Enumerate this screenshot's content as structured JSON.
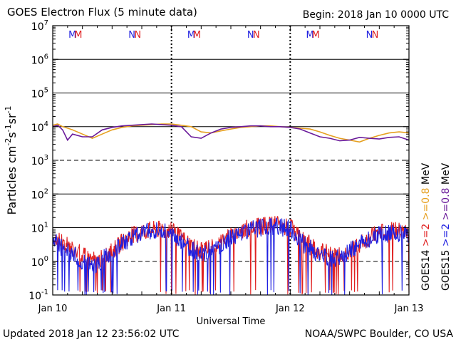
{
  "header": {
    "title": "GOES Electron Flux (5 minute data)",
    "begin": "Begin: 2018 Jan 10 0000 UTC"
  },
  "footer": {
    "updated": "Updated 2018 Jan 12 23:56:02 UTC",
    "credit": "NOAA/SWPC Boulder, CO USA"
  },
  "chart_data": {
    "type": "line",
    "title": "GOES Electron Flux (5 minute data)",
    "xlabel": "Universal Time",
    "ylabel_parts": [
      "Particles cm",
      "-2",
      "s",
      "-1",
      "sr",
      "-1"
    ],
    "y_scale": "log",
    "ylim": [
      0.1,
      10000000
    ],
    "y_ticks": [
      {
        "value": 0.1,
        "base": "10",
        "exp": "-1"
      },
      {
        "value": 1,
        "base": "10",
        "exp": "0"
      },
      {
        "value": 10,
        "base": "10",
        "exp": "1"
      },
      {
        "value": 100,
        "base": "10",
        "exp": "2"
      },
      {
        "value": 1000,
        "base": "10",
        "exp": "3"
      },
      {
        "value": 10000,
        "base": "10",
        "exp": "4"
      },
      {
        "value": 100000,
        "base": "10",
        "exp": "5"
      },
      {
        "value": 1000000,
        "base": "10",
        "exp": "6"
      },
      {
        "value": 10000000,
        "base": "10",
        "exp": "7"
      }
    ],
    "dashed_levels": [
      1000,
      1
    ],
    "xlim": [
      "2018-01-10 00:00",
      "2018-01-13 00:00"
    ],
    "x_ticks": [
      {
        "value": "2018-01-10 00:00",
        "label": "Jan 10"
      },
      {
        "value": "2018-01-11 00:00",
        "label": "Jan 11"
      },
      {
        "value": "2018-01-12 00:00",
        "label": "Jan 12"
      },
      {
        "value": "2018-01-13 00:00",
        "label": "Jan 13"
      }
    ],
    "markers": [
      {
        "label": "M",
        "satellite": "GOES14",
        "color": "#2020e0",
        "time": "2018-01-10 04:00"
      },
      {
        "label": "M",
        "satellite": "GOES15",
        "color": "#e02020",
        "time": "2018-01-10 05:10"
      },
      {
        "label": "N",
        "satellite": "GOES14",
        "color": "#2020e0",
        "time": "2018-01-10 16:00"
      },
      {
        "label": "N",
        "satellite": "GOES15",
        "color": "#e02020",
        "time": "2018-01-10 17:10"
      },
      {
        "label": "M",
        "satellite": "GOES14",
        "color": "#2020e0",
        "time": "2018-01-11 04:00"
      },
      {
        "label": "M",
        "satellite": "GOES15",
        "color": "#e02020",
        "time": "2018-01-11 05:10"
      },
      {
        "label": "N",
        "satellite": "GOES14",
        "color": "#2020e0",
        "time": "2018-01-11 16:00"
      },
      {
        "label": "N",
        "satellite": "GOES15",
        "color": "#e02020",
        "time": "2018-01-11 17:10"
      },
      {
        "label": "M",
        "satellite": "GOES14",
        "color": "#2020e0",
        "time": "2018-01-12 04:00"
      },
      {
        "label": "M",
        "satellite": "GOES15",
        "color": "#e02020",
        "time": "2018-01-12 05:10"
      },
      {
        "label": "N",
        "satellite": "GOES14",
        "color": "#2020e0",
        "time": "2018-01-12 16:00"
      },
      {
        "label": "N",
        "satellite": "GOES15",
        "color": "#e02020",
        "time": "2018-01-12 17:10"
      }
    ],
    "legend": {
      "placement": "right",
      "columns": [
        {
          "satellite": "GOES14",
          "entries": [
            {
              "text": ">=2",
              "color": "#e02020"
            },
            {
              "text": ">=0.8",
              "color": "#e6a020"
            }
          ],
          "unit": "MeV"
        },
        {
          "satellite": "GOES15",
          "entries": [
            {
              "text": ">=2",
              "color": "#2020e0"
            },
            {
              "text": ">=0.8",
              "color": "#6a1a9a"
            }
          ],
          "unit": "MeV"
        }
      ]
    },
    "series": [
      {
        "name": "GOES14 >=0.8 MeV",
        "color": "#e6a020",
        "x": [
          "2018-01-10 00:00",
          "2018-01-10 01:00",
          "2018-01-10 02:00",
          "2018-01-10 03:00",
          "2018-01-10 04:00",
          "2018-01-10 06:00",
          "2018-01-10 08:00",
          "2018-01-10 10:00",
          "2018-01-10 12:00",
          "2018-01-10 14:00",
          "2018-01-10 16:00",
          "2018-01-10 18:00",
          "2018-01-10 20:00",
          "2018-01-10 22:00",
          "2018-01-11 00:00",
          "2018-01-11 02:00",
          "2018-01-11 04:00",
          "2018-01-11 06:00",
          "2018-01-11 08:00",
          "2018-01-11 10:00",
          "2018-01-11 12:00",
          "2018-01-11 14:00",
          "2018-01-11 16:00",
          "2018-01-11 18:00",
          "2018-01-11 20:00",
          "2018-01-11 22:00",
          "2018-01-12 00:00",
          "2018-01-12 02:00",
          "2018-01-12 04:00",
          "2018-01-12 06:00",
          "2018-01-12 08:00",
          "2018-01-12 10:00",
          "2018-01-12 12:00",
          "2018-01-12 14:00",
          "2018-01-12 16:00",
          "2018-01-12 18:00",
          "2018-01-12 20:00",
          "2018-01-12 22:00",
          "2018-01-13 00:00"
        ],
        "values": [
          11000,
          12000,
          10000,
          9000,
          8000,
          6000,
          4500,
          6000,
          8000,
          9500,
          10500,
          11000,
          11500,
          12000,
          12000,
          11000,
          10000,
          7000,
          6500,
          7500,
          8500,
          9500,
          10000,
          10500,
          10500,
          10000,
          9500,
          9000,
          8500,
          7000,
          5500,
          4500,
          4000,
          3500,
          4500,
          5500,
          6500,
          7000,
          6500
        ]
      },
      {
        "name": "GOES15 >=0.8 MeV",
        "color": "#6a1a9a",
        "x": [
          "2018-01-10 00:00",
          "2018-01-10 01:00",
          "2018-01-10 02:00",
          "2018-01-10 03:00",
          "2018-01-10 04:00",
          "2018-01-10 06:00",
          "2018-01-10 08:00",
          "2018-01-10 10:00",
          "2018-01-10 12:00",
          "2018-01-10 14:00",
          "2018-01-10 16:00",
          "2018-01-10 18:00",
          "2018-01-10 20:00",
          "2018-01-10 22:00",
          "2018-01-11 00:00",
          "2018-01-11 02:00",
          "2018-01-11 04:00",
          "2018-01-11 06:00",
          "2018-01-11 08:00",
          "2018-01-11 10:00",
          "2018-01-11 12:00",
          "2018-01-11 14:00",
          "2018-01-11 16:00",
          "2018-01-11 18:00",
          "2018-01-11 20:00",
          "2018-01-11 22:00",
          "2018-01-12 00:00",
          "2018-01-12 02:00",
          "2018-01-12 04:00",
          "2018-01-12 06:00",
          "2018-01-12 08:00",
          "2018-01-12 10:00",
          "2018-01-12 12:00",
          "2018-01-12 14:00",
          "2018-01-12 16:00",
          "2018-01-12 18:00",
          "2018-01-12 20:00",
          "2018-01-12 22:00",
          "2018-01-13 00:00"
        ],
        "values": [
          10000,
          11000,
          8000,
          4000,
          6000,
          5000,
          5000,
          8000,
          9500,
          10500,
          11000,
          11500,
          12000,
          11500,
          11000,
          10000,
          5000,
          4500,
          6500,
          8500,
          9500,
          10000,
          10500,
          10500,
          10000,
          10000,
          9500,
          8500,
          6500,
          5000,
          4500,
          3800,
          4000,
          4800,
          4500,
          4300,
          4800,
          5000,
          4000
        ]
      }
    ],
    "noisy_series": [
      {
        "name": "GOES14 >=2 MeV",
        "color": "#e02020",
        "trend_x": [
          "2018-01-10 00:00",
          "2018-01-10 03:00",
          "2018-01-10 06:00",
          "2018-01-10 09:00",
          "2018-01-10 12:00",
          "2018-01-10 15:00",
          "2018-01-10 18:00",
          "2018-01-10 21:00",
          "2018-01-11 00:00",
          "2018-01-11 03:00",
          "2018-01-11 06:00",
          "2018-01-11 09:00",
          "2018-01-11 12:00",
          "2018-01-11 15:00",
          "2018-01-11 18:00",
          "2018-01-11 21:00",
          "2018-01-12 00:00",
          "2018-01-12 03:00",
          "2018-01-12 06:00",
          "2018-01-12 09:00",
          "2018-01-12 12:00",
          "2018-01-12 15:00",
          "2018-01-12 18:00",
          "2018-01-12 21:00",
          "2018-01-13 00:00"
        ],
        "trend": [
          5,
          3,
          1.5,
          1,
          2,
          5,
          8,
          9,
          8,
          4,
          2,
          3,
          6,
          9,
          11,
          12,
          10,
          4,
          2,
          1.5,
          2,
          4,
          7,
          8,
          7
        ]
      },
      {
        "name": "GOES15 >=2 MeV",
        "color": "#2020e0",
        "trend_x": [
          "2018-01-10 00:00",
          "2018-01-10 03:00",
          "2018-01-10 06:00",
          "2018-01-10 09:00",
          "2018-01-10 12:00",
          "2018-01-10 15:00",
          "2018-01-10 18:00",
          "2018-01-10 21:00",
          "2018-01-11 00:00",
          "2018-01-11 03:00",
          "2018-01-11 06:00",
          "2018-01-11 09:00",
          "2018-01-11 12:00",
          "2018-01-11 15:00",
          "2018-01-11 18:00",
          "2018-01-11 21:00",
          "2018-01-12 00:00",
          "2018-01-12 03:00",
          "2018-01-12 06:00",
          "2018-01-12 09:00",
          "2018-01-12 12:00",
          "2018-01-12 15:00",
          "2018-01-12 18:00",
          "2018-01-12 21:00",
          "2018-01-13 00:00"
        ],
        "trend": [
          4,
          2,
          1,
          0.8,
          2,
          4,
          7,
          8,
          7,
          3,
          1.5,
          2.5,
          5,
          8,
          10,
          11,
          9,
          3,
          1.5,
          1.2,
          2,
          4,
          6,
          7,
          6
        ]
      }
    ]
  }
}
